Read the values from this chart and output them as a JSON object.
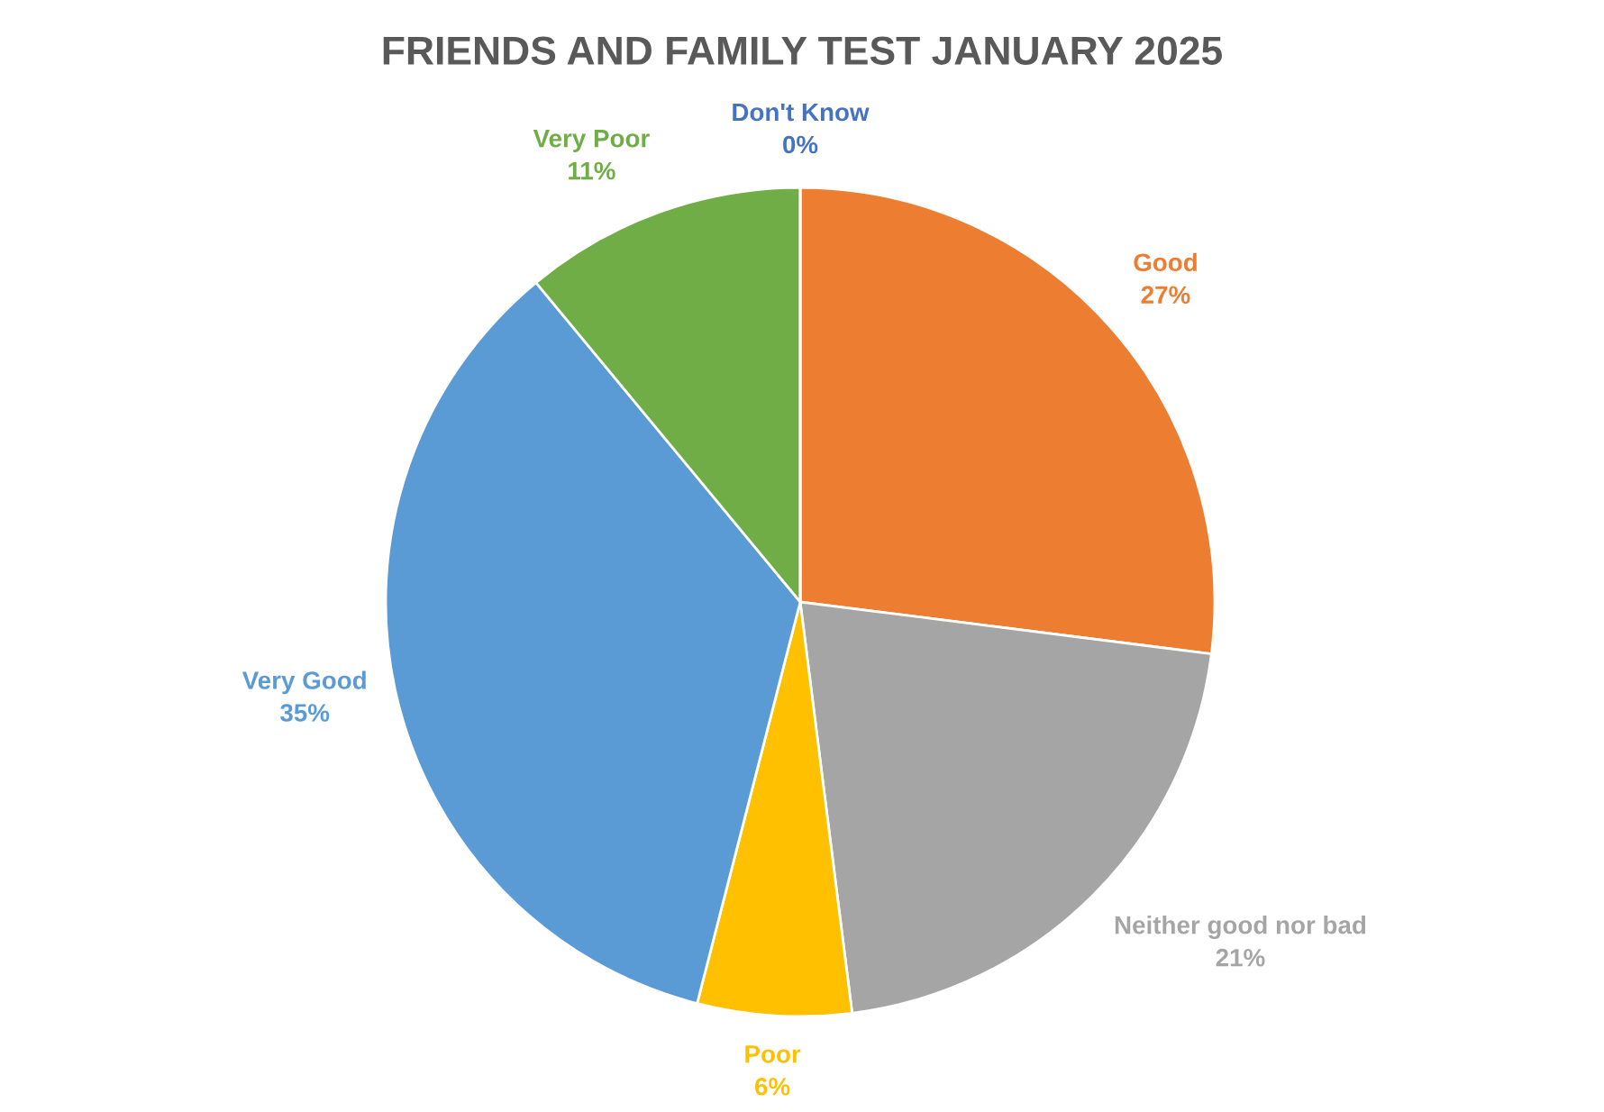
{
  "chart_data": {
    "type": "pie",
    "title": "FRIENDS AND FAMILY TEST JANUARY 2025",
    "categories": [
      "Good",
      "Neither good nor bad",
      "Poor",
      "Very Good",
      "Very Poor",
      "Don't Know"
    ],
    "values": [
      27,
      21,
      6,
      35,
      11,
      0
    ],
    "colors": [
      "#ed7d31",
      "#a5a5a5",
      "#ffc000",
      "#5b9bd5",
      "#70ad47",
      "#4472c4"
    ],
    "value_labels": [
      "27%",
      "21%",
      "6%",
      "35%",
      "11%",
      "0%"
    ]
  }
}
